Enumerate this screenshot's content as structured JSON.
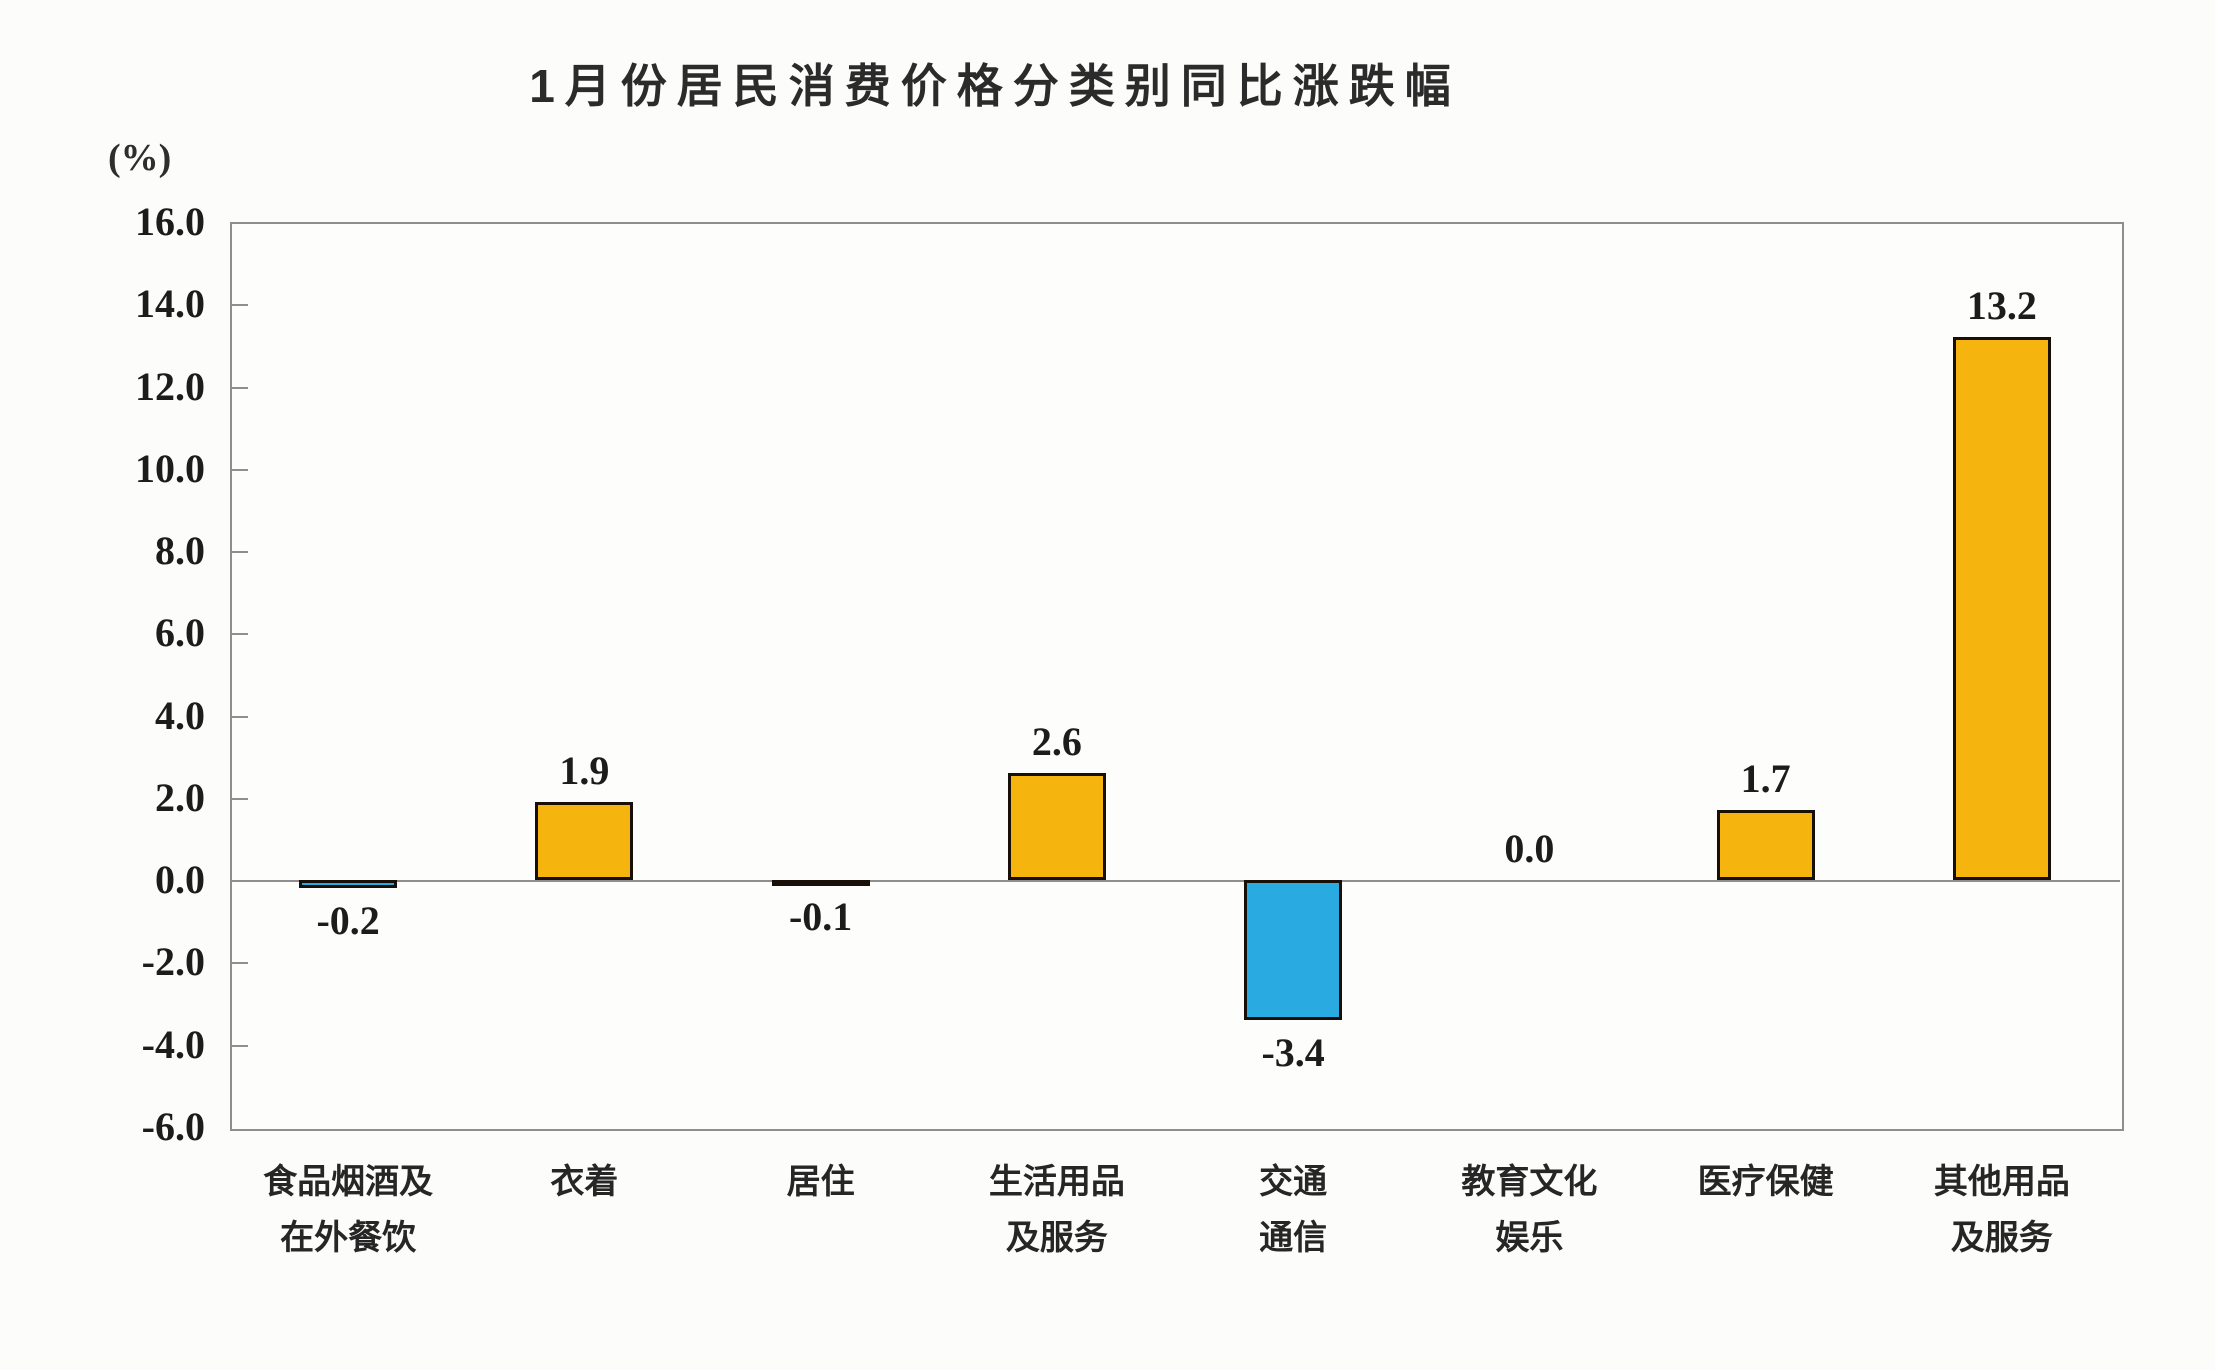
{
  "header": {
    "title": "1月份居民消费价格分类别同比涨跌幅",
    "unit_label": "(%)"
  },
  "chart_data": {
    "type": "bar",
    "title": "1月份居民消费价格分类别同比涨跌幅",
    "ylabel": "(%)",
    "xlabel": "",
    "categories": [
      "食品烟酒及\n在外餐饮",
      "衣着",
      "居住",
      "生活用品\n及服务",
      "交通\n通信",
      "教育文化\n娱乐",
      "医疗保健",
      "其他用品\n及服务"
    ],
    "values": [
      -0.2,
      1.9,
      -0.1,
      2.6,
      -3.4,
      0.0,
      1.7,
      13.2
    ],
    "value_labels": [
      "-0.2",
      "1.9",
      "-0.1",
      "2.6",
      "-3.4",
      "0.0",
      "1.7",
      "13.2"
    ],
    "bar_colors": [
      "#29ABE2",
      "#F6B40E",
      "#29ABE2",
      "#F6B40E",
      "#29ABE2",
      "#F6B40E",
      "#F6B40E",
      "#F6B40E"
    ],
    "ylim": [
      -6.0,
      16.0
    ],
    "ytick_step": 2.0,
    "ytick_labels": [
      "16.0",
      "14.0",
      "12.0",
      "10.0",
      "8.0",
      "6.0",
      "4.0",
      "2.0",
      "0.0",
      "-2.0",
      "-4.0",
      "-6.0"
    ],
    "grid": false,
    "legend": false,
    "colors": {
      "positive_bar": "#F6B40E",
      "negative_bar": "#29ABE2",
      "bar_border": "#181008",
      "axis": "#8e8e8e",
      "text": "#1c1c1c"
    }
  }
}
